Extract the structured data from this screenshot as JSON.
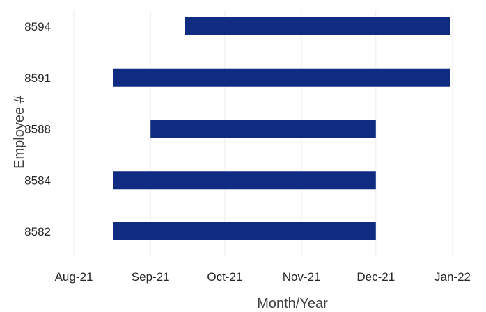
{
  "chart_data": {
    "type": "bar",
    "orientation": "horizontal",
    "title": "",
    "xlabel": "Month/Year",
    "ylabel": "Employee #",
    "x_ticks": [
      "Aug-21",
      "Sep-21",
      "Oct-21",
      "Nov-21",
      "Dec-21",
      "Jan-22"
    ],
    "xlim": [
      "2021-08-01",
      "2022-01-01"
    ],
    "grid": "vertical",
    "legend": "none",
    "bar_color": "#0f2b82",
    "series": [
      {
        "categories": [
          "8594",
          "8591",
          "8588",
          "8584",
          "8582"
        ],
        "start": [
          "2021-09-15",
          "2021-08-17",
          "2021-09-01",
          "2021-08-17",
          "2021-08-17"
        ],
        "end": [
          "2021-12-31",
          "2021-12-31",
          "2021-12-01",
          "2021-12-01",
          "2021-12-01"
        ]
      }
    ]
  }
}
